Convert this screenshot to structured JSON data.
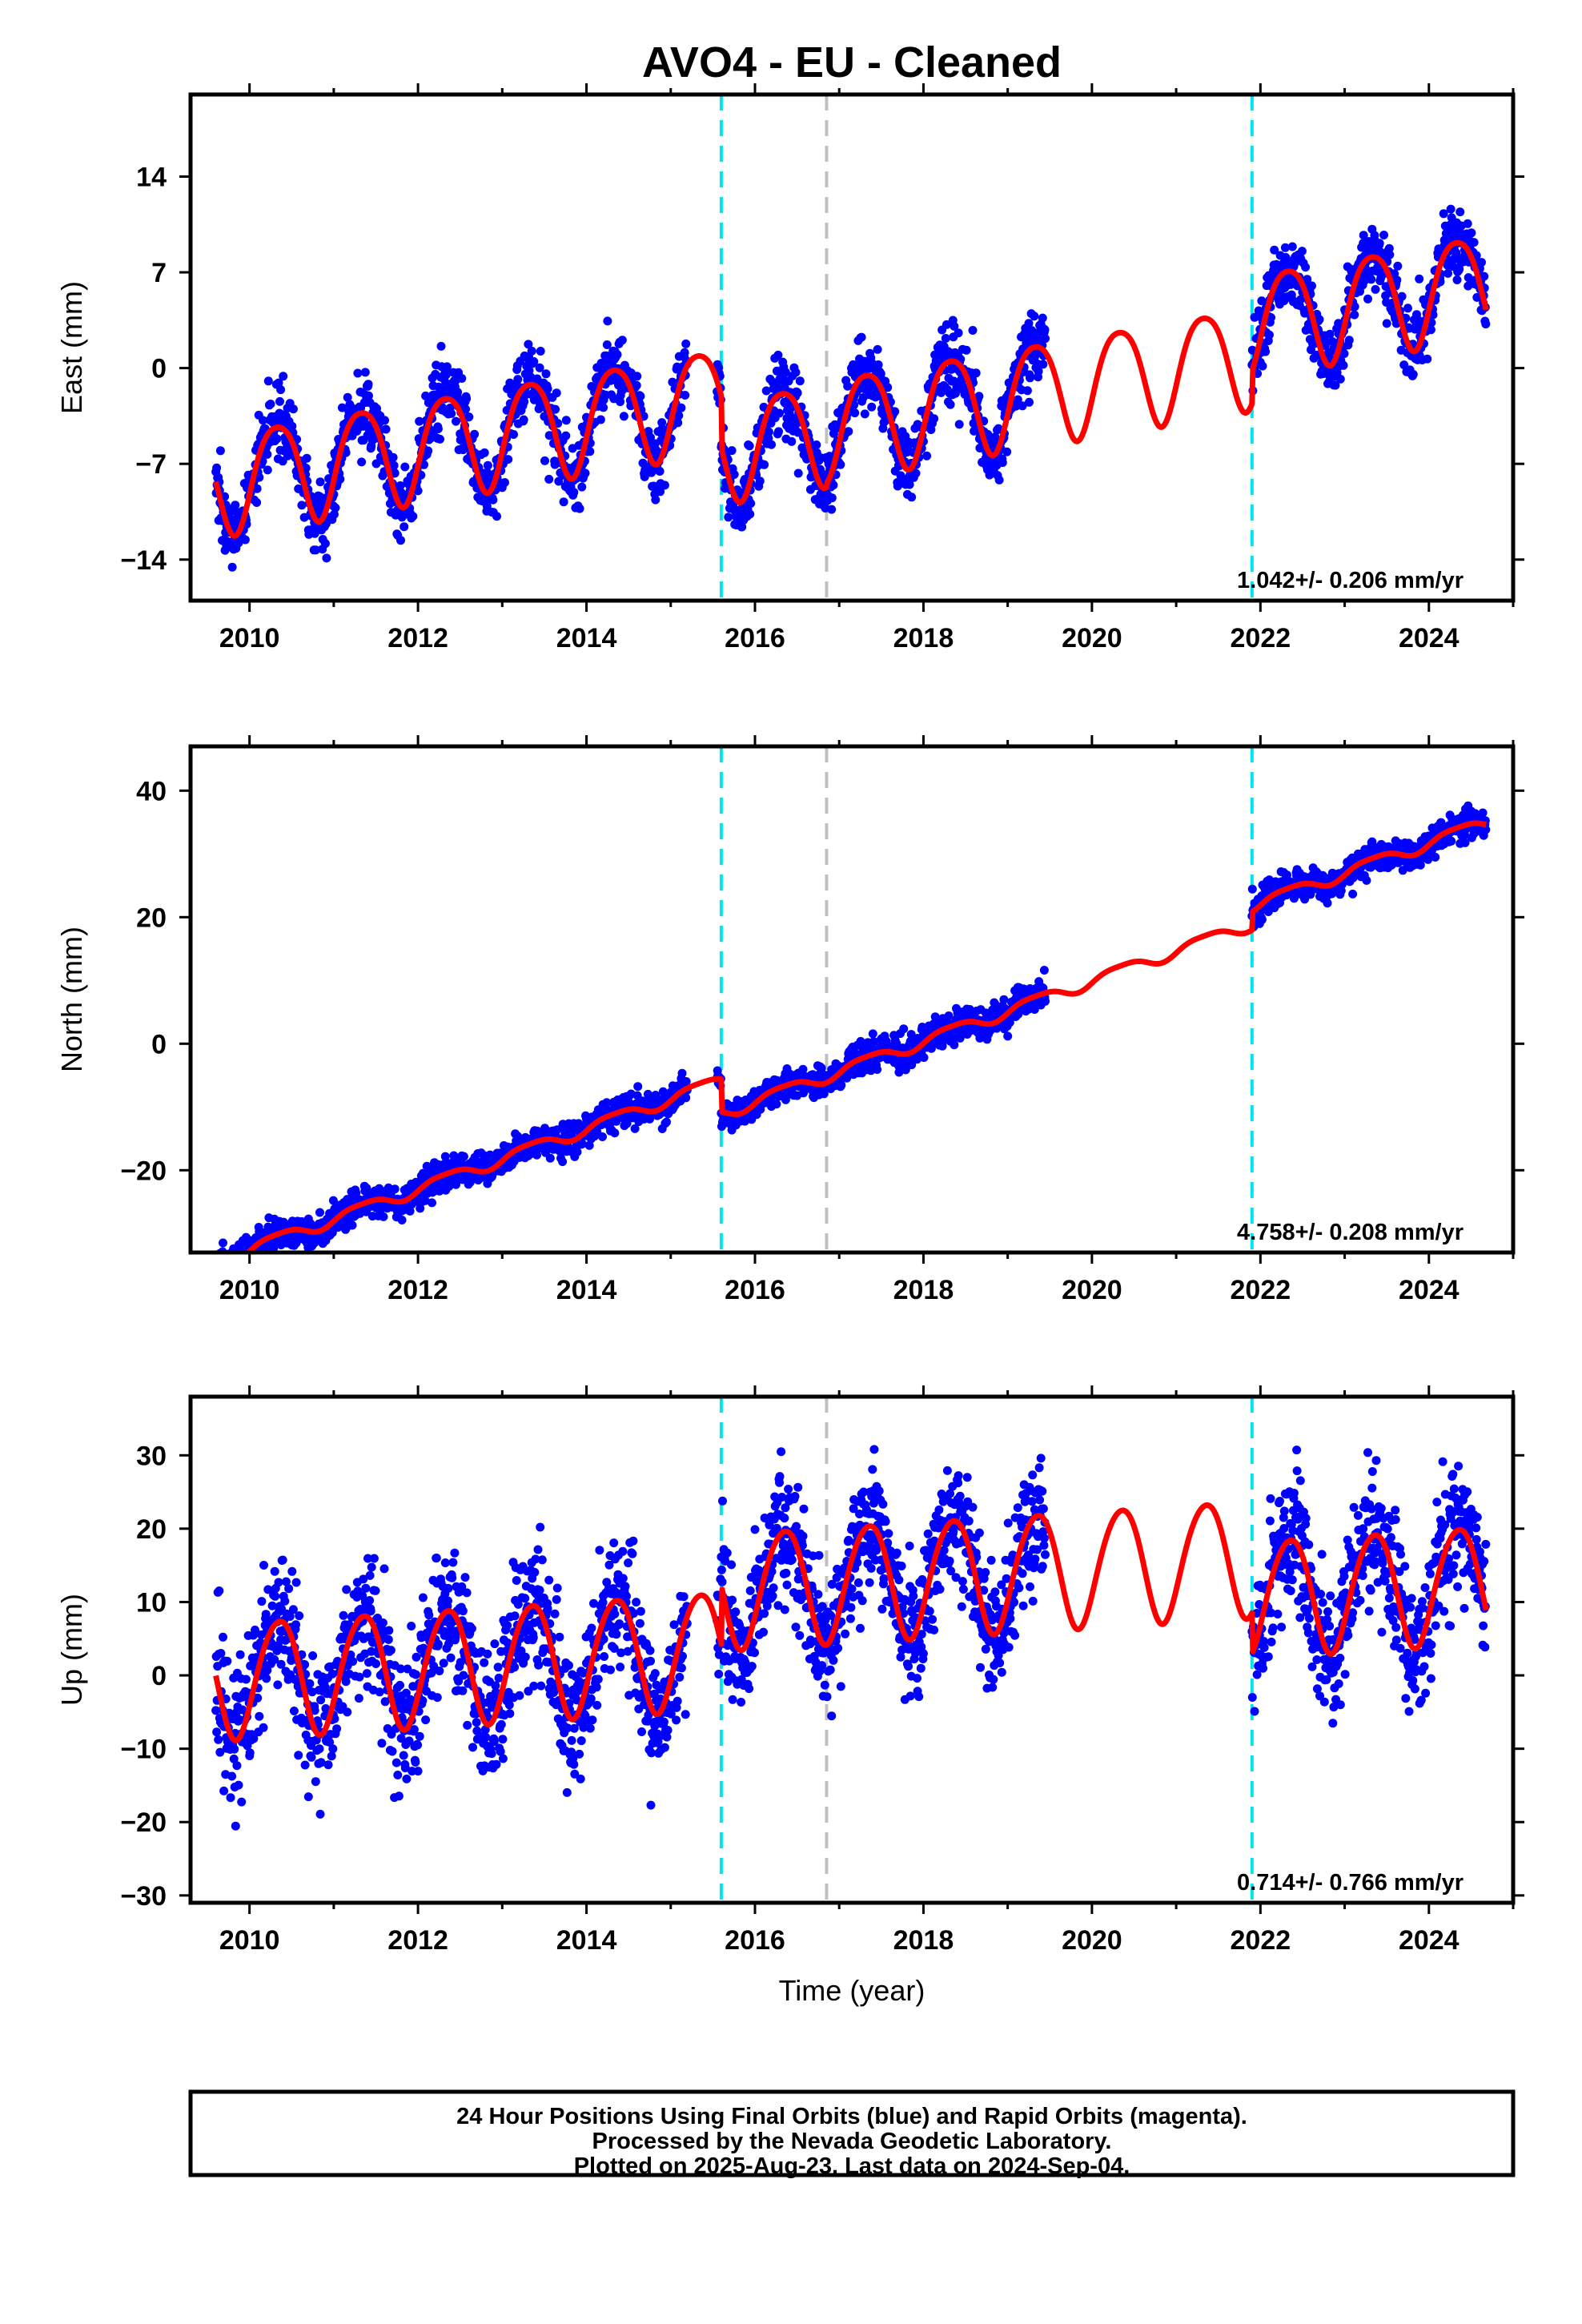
{
  "page": {
    "title": "AVO4  - EU - Cleaned",
    "footer": {
      "lines": [
        "24 Hour Positions Using Final Orbits (blue) and Rapid Orbits (magenta).",
        "Processed by the Nevada Geodetic Laboratory.",
        "Plotted on 2025-Aug-23. Last data on 2024-Sep-04."
      ]
    }
  },
  "chart_data": [
    {
      "type": "scatter",
      "panel": "east",
      "title": "AVO4  - EU - Cleaned",
      "xlabel": "",
      "ylabel": "East (mm)",
      "xlim": [
        2009.3,
        2025.0
      ],
      "ylim": [
        -17,
        20
      ],
      "x_ticks": [
        2010,
        2012,
        2014,
        2016,
        2018,
        2020,
        2022,
        2024
      ],
      "y_ticks": [
        14,
        7,
        0,
        -7,
        -14
      ],
      "y_tick_labels": [
        "14",
        "7",
        "0",
        "−7",
        "−14"
      ],
      "rate_label": "1.042+/- 0.206 mm/yr",
      "grid": false,
      "colors": {
        "observations": "#0000ff",
        "model": "#ff0000",
        "offset_equipment": "#00e5ee",
        "offset_other": "#c0c0c0"
      },
      "offsets": [
        {
          "x": 2015.6,
          "kind": "equipment"
        },
        {
          "x": 2016.85,
          "kind": "other"
        },
        {
          "x": 2021.9,
          "kind": "equipment"
        }
      ],
      "data_segments": [
        [
          2009.6,
          2015.2
        ],
        [
          2015.55,
          2019.45
        ],
        [
          2021.9,
          2024.68
        ]
      ],
      "model": {
        "x_start": 2009.6,
        "x_end": 2024.68,
        "ref_epoch": 2017.0,
        "intercept": -0.55,
        "slope": 1.042,
        "annual_sin": 3.3,
        "annual_cos": -1.7,
        "semiannual_sin": 0.45,
        "semiannual_cos": 0.3,
        "steps": [
          {
            "x": 2015.6,
            "size": -3.8
          },
          {
            "x": 2016.85,
            "size": 0.3
          },
          {
            "x": 2021.9,
            "size": 2.4
          }
        ]
      },
      "scatter_std": 1.3
    },
    {
      "type": "scatter",
      "panel": "north",
      "xlabel": "",
      "ylabel": "North (mm)",
      "xlim": [
        2009.3,
        2025.0
      ],
      "ylim": [
        -33,
        47
      ],
      "x_ticks": [
        2010,
        2012,
        2014,
        2016,
        2018,
        2020,
        2022,
        2024
      ],
      "y_ticks": [
        40,
        20,
        0,
        -20
      ],
      "y_tick_labels": [
        "40",
        "20",
        "0",
        "−20"
      ],
      "rate_label": "4.758+/- 0.208 mm/yr",
      "grid": false,
      "colors": {
        "observations": "#0000ff",
        "model": "#ff0000",
        "offset_equipment": "#00e5ee",
        "offset_other": "#c0c0c0"
      },
      "offsets": [
        {
          "x": 2015.6,
          "kind": "equipment"
        },
        {
          "x": 2016.85,
          "kind": "other"
        },
        {
          "x": 2021.9,
          "kind": "equipment"
        }
      ],
      "data_segments": [
        [
          2009.6,
          2015.2
        ],
        [
          2015.55,
          2019.45
        ],
        [
          2021.9,
          2024.68
        ]
      ],
      "model": {
        "x_start": 2009.6,
        "x_end": 2024.68,
        "ref_epoch": 2017.0,
        "intercept": 0.9,
        "slope": 4.758,
        "annual_sin": 0.8,
        "annual_cos": -0.5,
        "semiannual_sin": 0.2,
        "semiannual_cos": 0.1,
        "steps": [
          {
            "x": 2015.6,
            "size": -5.2
          },
          {
            "x": 2016.85,
            "size": 0.0
          },
          {
            "x": 2021.9,
            "size": 2.8
          }
        ]
      },
      "scatter_std": 1.2
    },
    {
      "type": "scatter",
      "panel": "up",
      "xlabel": "Time (year)",
      "ylabel": "Up (mm)",
      "xlim": [
        2009.3,
        2025.0
      ],
      "ylim": [
        -31,
        38
      ],
      "x_ticks": [
        2010,
        2012,
        2014,
        2016,
        2018,
        2020,
        2022,
        2024
      ],
      "y_ticks": [
        30,
        20,
        10,
        0,
        -10,
        -20,
        -30
      ],
      "y_tick_labels": [
        "30",
        "20",
        "10",
        "0",
        "−10",
        "−20",
        "−30"
      ],
      "rate_label": "0.714+/- 0.766 mm/yr",
      "grid": false,
      "colors": {
        "observations": "#0000ff",
        "model": "#ff0000",
        "offset_equipment": "#00e5ee",
        "offset_other": "#c0c0c0"
      },
      "offsets": [
        {
          "x": 2015.6,
          "kind": "equipment"
        },
        {
          "x": 2016.85,
          "kind": "other"
        },
        {
          "x": 2021.9,
          "kind": "equipment"
        }
      ],
      "data_segments": [
        [
          2009.6,
          2015.2
        ],
        [
          2015.55,
          2019.45
        ],
        [
          2021.9,
          2024.68
        ]
      ],
      "model": {
        "x_start": 2009.6,
        "x_end": 2024.68,
        "ref_epoch": 2017.0,
        "intercept": 4.8,
        "slope": 0.714,
        "annual_sin": 6.5,
        "annual_cos": -4.5,
        "semiannual_sin": 0.5,
        "semiannual_cos": 0.5,
        "steps": [
          {
            "x": 2015.6,
            "size": 8.0
          },
          {
            "x": 2016.85,
            "size": 0.0
          },
          {
            "x": 2021.9,
            "size": -5.5
          }
        ]
      },
      "scatter_std": 4.5
    }
  ]
}
